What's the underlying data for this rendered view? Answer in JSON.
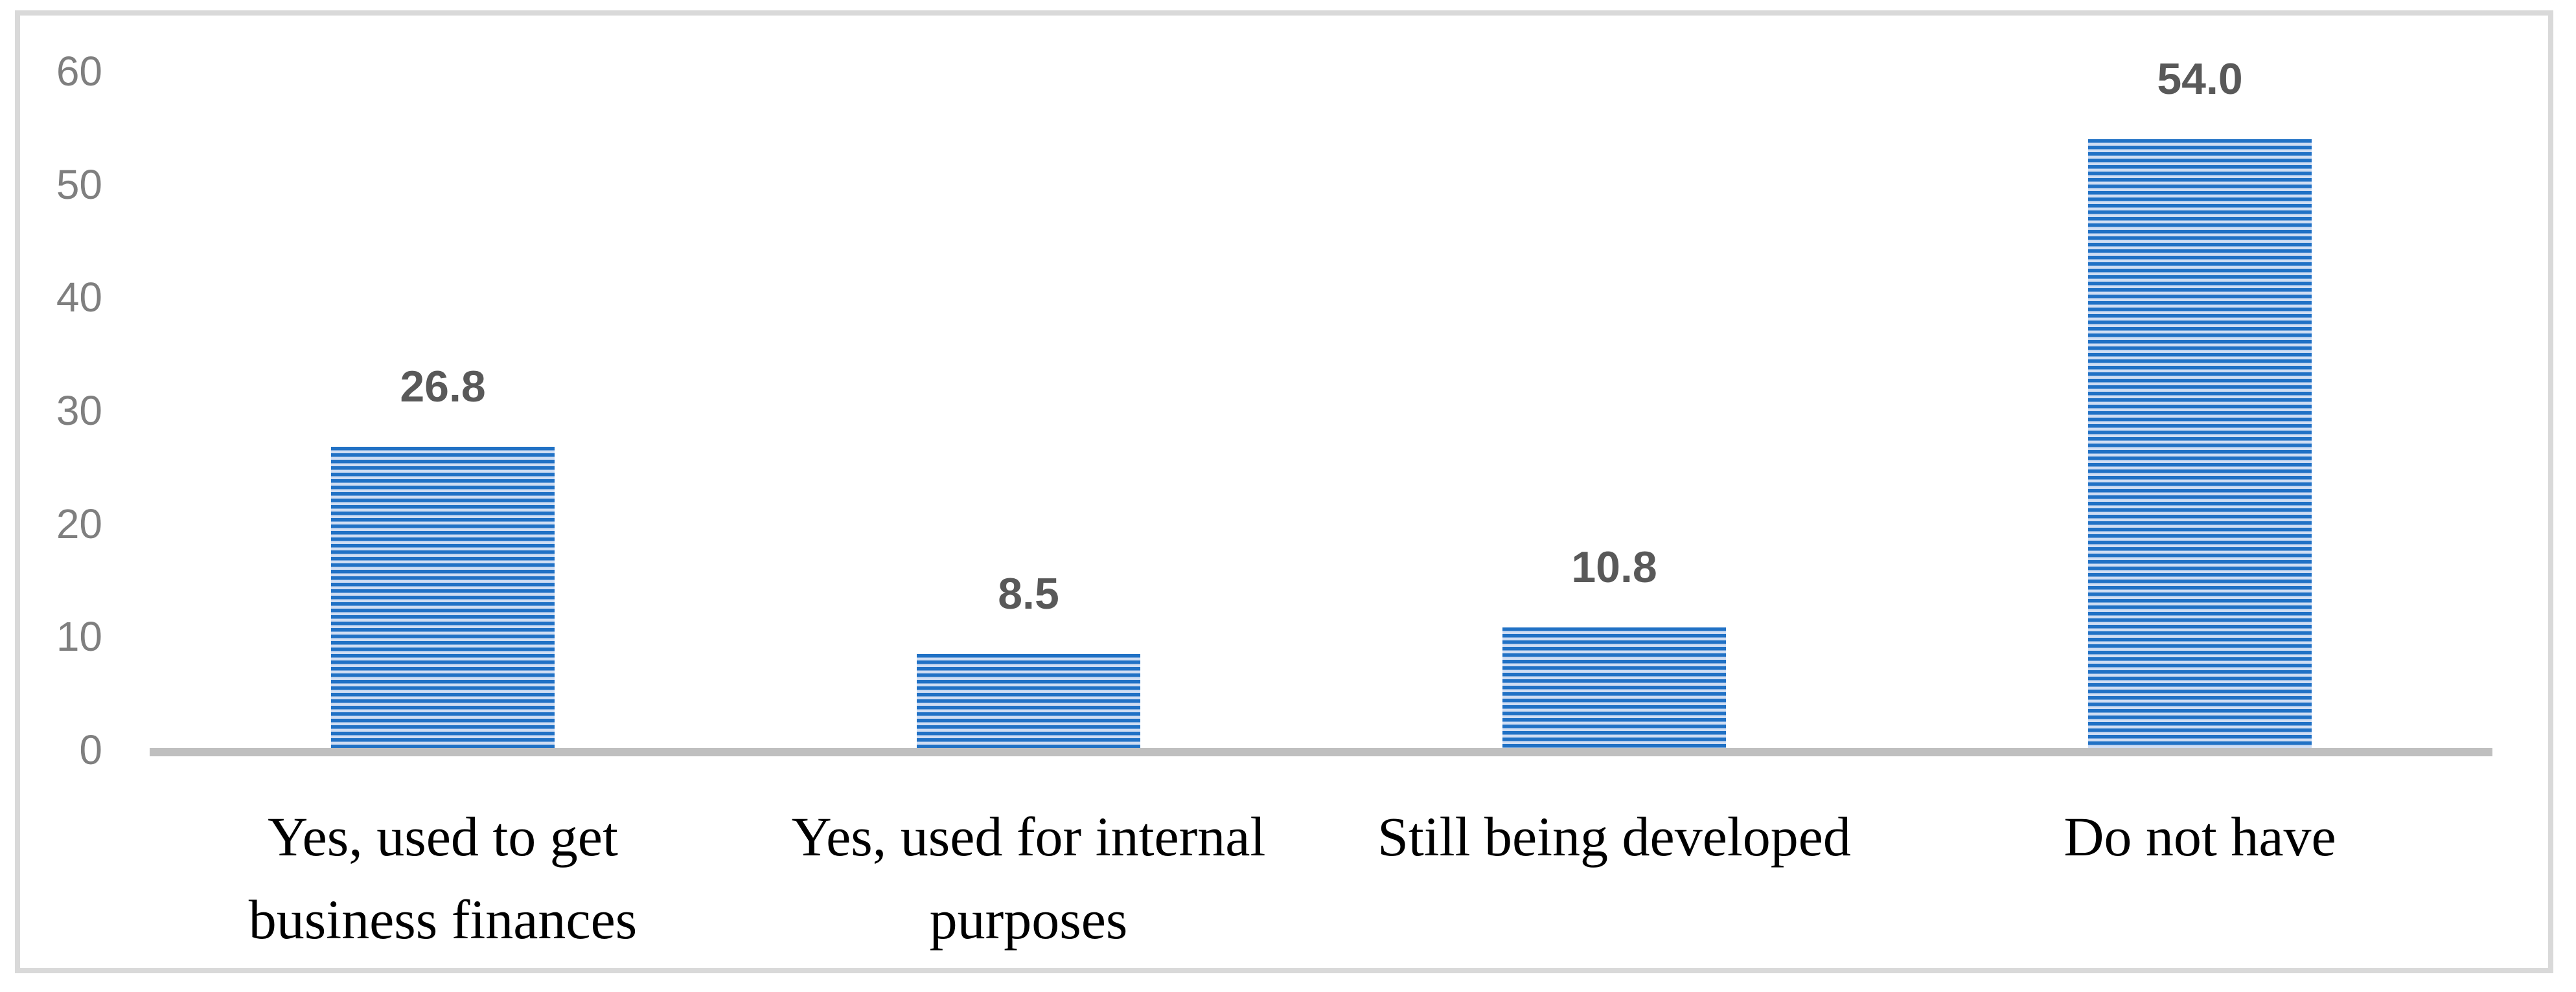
{
  "chart_data": {
    "type": "bar",
    "title": "",
    "xlabel": "",
    "ylabel": "",
    "categories": [
      "Yes, used to get business finances",
      "Yes, used for internal purposes",
      "Still being developed",
      "Do not have"
    ],
    "category_lines": [
      [
        "Yes, used to get",
        "business finances"
      ],
      [
        "Yes, used for internal",
        "purposes"
      ],
      [
        "Still being developed"
      ],
      [
        "Do not have"
      ]
    ],
    "values": [
      26.8,
      8.5,
      10.8,
      54.0
    ],
    "value_labels": [
      "26.8",
      "8.5",
      "10.8",
      "54.0"
    ],
    "ylim": [
      0,
      60
    ],
    "yticks": [
      0,
      10,
      20,
      30,
      40,
      50,
      60
    ],
    "grid": false,
    "legend_position": "none",
    "bar_fill_style": "horizontal-stripes",
    "colors": {
      "bar_stripe_blue": "#2071C5",
      "bar_stripe_light": "#CFDDF3",
      "axis_line": "#BFBFBF",
      "tick_label": "#7F7F7F",
      "data_label": "#595959",
      "category_label": "#000000",
      "frame_border": "#D9D9D9"
    }
  }
}
